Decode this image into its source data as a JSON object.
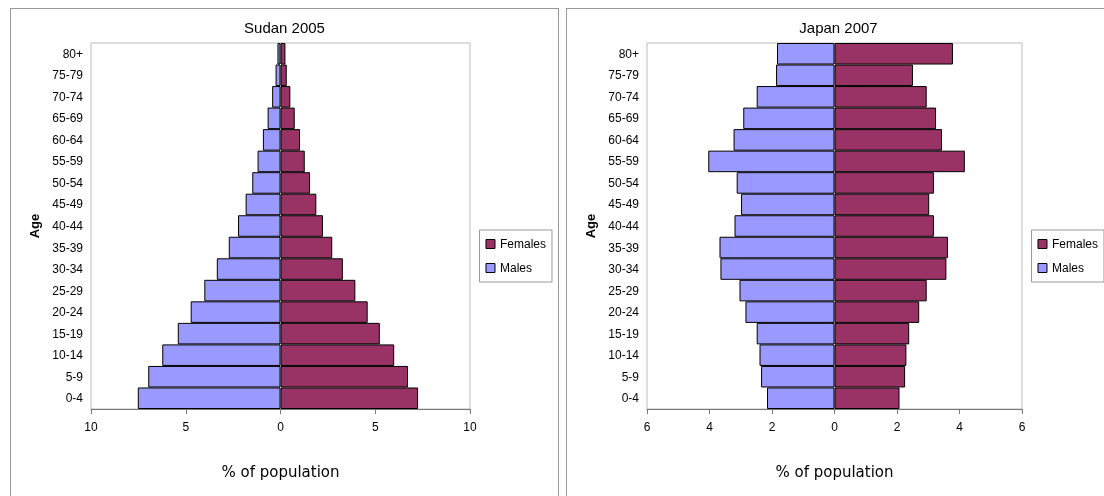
{
  "chart_data": [
    {
      "type": "bar",
      "title": "Sudan 2005",
      "xlabel": "% of population",
      "ylabel": "Age",
      "orientation": "horizontal",
      "stacked": true,
      "legend": "right",
      "grid": false,
      "categories": [
        "80+",
        "75-79",
        "70-74",
        "65-69",
        "60-64",
        "55-59",
        "50-54",
        "45-49",
        "40-44",
        "35-39",
        "30-34",
        "25-29",
        "20-24",
        "15-19",
        "10-14",
        "5-9",
        "0-4"
      ],
      "series": [
        {
          "name": "Females",
          "color": "#993366",
          "values": [
            0.26,
            0.33,
            0.52,
            0.75,
            1.03,
            1.28,
            1.56,
            1.89,
            2.24,
            2.73,
            3.29,
            3.95,
            4.6,
            5.24,
            6.0,
            6.73,
            7.26
          ]
        },
        {
          "name": "Males",
          "color": "#9999ff",
          "values": [
            -0.16,
            -0.26,
            -0.44,
            -0.68,
            -0.93,
            -1.21,
            -1.49,
            -1.84,
            -2.24,
            -2.73,
            -3.36,
            -4.02,
            -4.74,
            -5.42,
            -6.24,
            -6.98,
            -7.53
          ]
        }
      ],
      "xlim": [
        -10,
        10
      ],
      "xticks": [
        {
          "value": -10,
          "label": "10"
        },
        {
          "value": -5,
          "label": "5"
        },
        0,
        5,
        10
      ]
    },
    {
      "type": "bar",
      "title": "Japan 2007",
      "xlabel": "% of population",
      "ylabel": "Age",
      "orientation": "horizontal",
      "stacked": true,
      "legend": "right",
      "grid": false,
      "categories": [
        "80+",
        "75-79",
        "70-74",
        "65-69",
        "60-64",
        "55-59",
        "50-54",
        "45-49",
        "40-44",
        "35-39",
        "30-34",
        "25-29",
        "20-24",
        "15-19",
        "10-14",
        "5-9",
        "0-4"
      ],
      "series": [
        {
          "name": "Females",
          "color": "#993366",
          "values": [
            3.79,
            2.51,
            2.95,
            3.25,
            3.44,
            4.17,
            3.18,
            3.03,
            3.18,
            3.63,
            3.58,
            2.95,
            2.71,
            2.39,
            2.3,
            2.26,
            2.08
          ]
        },
        {
          "name": "Males",
          "color": "#9999ff",
          "values": [
            -1.84,
            -1.87,
            -2.49,
            -2.92,
            -3.23,
            -4.04,
            -3.13,
            -2.99,
            -3.2,
            -3.68,
            -3.65,
            -3.04,
            -2.85,
            -2.49,
            -2.4,
            -2.35,
            -2.16
          ]
        }
      ],
      "xlim": [
        -6,
        6
      ],
      "xticks": [
        {
          "value": -6,
          "label": "6"
        },
        {
          "value": -4,
          "label": "4"
        },
        {
          "value": -2,
          "label": "2"
        },
        0,
        2,
        4,
        6
      ]
    }
  ]
}
